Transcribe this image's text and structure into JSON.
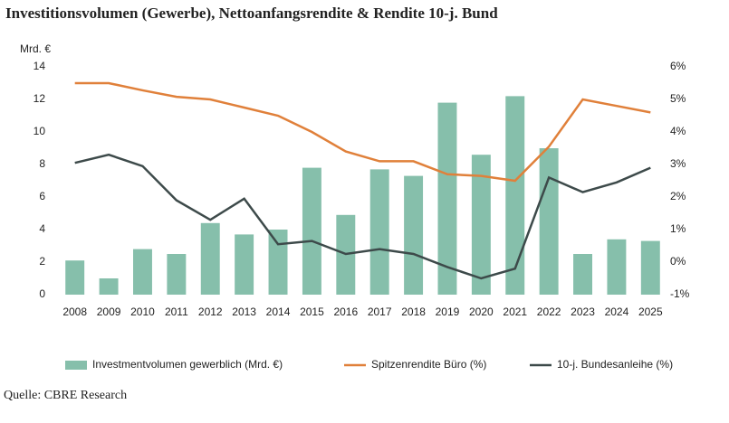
{
  "chart_data": {
    "type": "bar-line",
    "title": "Investitionsvolumen (Gewerbe), Nettoanfangsrendite & Rendite 10-j. Bund",
    "ylabel": "Mrd. €",
    "source": "Quelle: CBRE Research",
    "categories": [
      "2008",
      "2009",
      "2010",
      "2011",
      "2012",
      "2013",
      "2014",
      "2015",
      "2016",
      "2017",
      "2018",
      "2019",
      "2020",
      "2021",
      "2022",
      "2023",
      "2024",
      "2025"
    ],
    "series": [
      {
        "name": "Investmentvolumen gewerblich (Mrd. €)",
        "kind": "bar",
        "color": "#86bfab",
        "values": [
          2.1,
          1.0,
          2.8,
          2.5,
          4.4,
          3.7,
          4.0,
          7.8,
          4.9,
          7.7,
          7.3,
          11.8,
          8.6,
          12.2,
          9.0,
          2.5,
          3.4,
          3.3
        ]
      },
      {
        "name": "Spitzenrendite Büro (%)",
        "kind": "line",
        "axis": "y2",
        "color": "#e0803a",
        "values": [
          5.5,
          5.5,
          5.28,
          5.08,
          5.0,
          4.75,
          4.5,
          4.0,
          3.4,
          3.1,
          3.1,
          2.7,
          2.65,
          2.5,
          3.55,
          5.0,
          4.8,
          4.6
        ]
      },
      {
        "name": "10-j. Bundesanleihe (%)",
        "kind": "line",
        "axis": "y2",
        "color": "#3d4a4a",
        "values": [
          3.05,
          3.3,
          2.95,
          1.9,
          1.3,
          1.95,
          0.55,
          0.65,
          0.25,
          0.4,
          0.25,
          -0.15,
          -0.5,
          -0.2,
          2.6,
          2.15,
          2.45,
          2.9
        ]
      }
    ],
    "ylim": [
      0,
      14
    ],
    "yticks": [
      0,
      2,
      4,
      6,
      8,
      10,
      12,
      14
    ],
    "y2lim": [
      -1,
      6
    ],
    "y2ticks": [
      {
        "value": -1,
        "label": "-1%"
      },
      {
        "value": 0,
        "label": "0%"
      },
      {
        "value": 1,
        "label": "1%"
      },
      {
        "value": 2,
        "label": "2%"
      },
      {
        "value": 3,
        "label": "3%"
      },
      {
        "value": 4,
        "label": "4%"
      },
      {
        "value": 5,
        "label": "5%"
      },
      {
        "value": 6,
        "label": "6%"
      }
    ],
    "legend": "bottom"
  }
}
